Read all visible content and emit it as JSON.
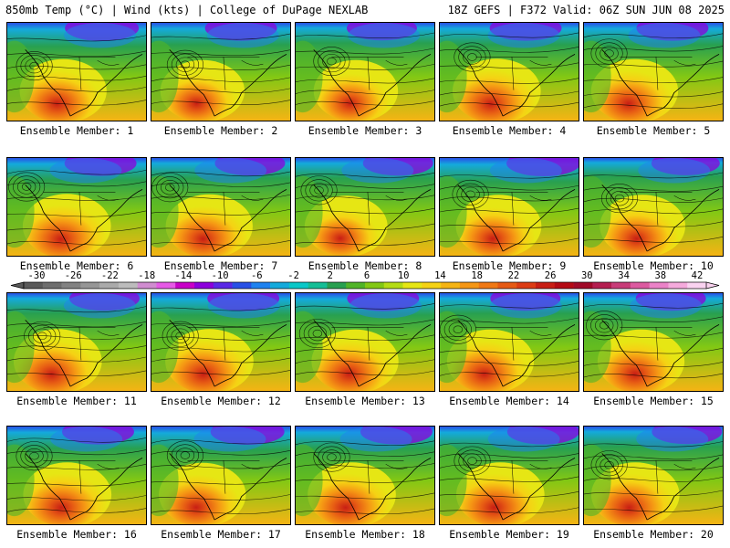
{
  "header": {
    "left": "850mb Temp (°C) | Wind (kts) | College of DuPage NEXLAB",
    "right": "18Z GEFS | F372 Valid: 06Z SUN JUN 08 2025"
  },
  "panels": [
    {
      "label": "Ensemble Member: 1",
      "warmth": 0.55,
      "cold_north": 0.55
    },
    {
      "label": "Ensemble Member: 2",
      "warmth": 0.45,
      "cold_north": 0.5
    },
    {
      "label": "Ensemble Member: 3",
      "warmth": 0.45,
      "cold_north": 0.45
    },
    {
      "label": "Ensemble Member: 4",
      "warmth": 0.6,
      "cold_north": 0.5
    },
    {
      "label": "Ensemble Member: 5",
      "warmth": 0.55,
      "cold_north": 0.5
    },
    {
      "label": "Ensemble Member: 6",
      "warmth": 0.6,
      "cold_north": 0.5
    },
    {
      "label": "Ensemble Member: 7",
      "warmth": 0.55,
      "cold_north": 0.45
    },
    {
      "label": "Ensemble Member: 8",
      "warmth": 0.4,
      "cold_north": 0.45
    },
    {
      "label": "Ensemble Member: 9",
      "warmth": 0.5,
      "cold_north": 0.55
    },
    {
      "label": "Ensemble Member: 10",
      "warmth": 0.5,
      "cold_north": 0.4
    },
    {
      "label": "Ensemble Member: 11",
      "warmth": 0.6,
      "cold_north": 0.45
    },
    {
      "label": "Ensemble Member: 12",
      "warmth": 0.6,
      "cold_north": 0.5
    },
    {
      "label": "Ensemble Member: 13",
      "warmth": 0.55,
      "cold_north": 0.5
    },
    {
      "label": "Ensemble Member: 14",
      "warmth": 0.55,
      "cold_north": 0.45
    },
    {
      "label": "Ensemble Member: 15",
      "warmth": 0.55,
      "cold_north": 0.45
    },
    {
      "label": "Ensemble Member: 16",
      "warmth": 0.6,
      "cold_north": 0.5
    },
    {
      "label": "Ensemble Member: 17",
      "warmth": 0.55,
      "cold_north": 0.55
    },
    {
      "label": "Ensemble Member: 18",
      "warmth": 0.6,
      "cold_north": 0.5
    },
    {
      "label": "Ensemble Member: 19",
      "warmth": 0.6,
      "cold_north": 0.5
    },
    {
      "label": "Ensemble Member: 20",
      "warmth": 0.6,
      "cold_north": 0.45
    }
  ],
  "colorbar": {
    "labels": [
      "-30",
      "-26",
      "-22",
      "-18",
      "-14",
      "-10",
      "-6",
      "-2",
      "2",
      "6",
      "10",
      "14",
      "18",
      "22",
      "26",
      "30",
      "34",
      "38",
      "42"
    ],
    "colors": [
      "#5a5a5a",
      "#6e6e6e",
      "#828282",
      "#969696",
      "#aaaaaa",
      "#bcbcbc",
      "#d08cd0",
      "#e65ae6",
      "#c800c8",
      "#8c00dc",
      "#5a28e6",
      "#2850e6",
      "#1e82f0",
      "#14aadc",
      "#0ac8c8",
      "#14be96",
      "#28a050",
      "#50b428",
      "#82c814",
      "#b4dc14",
      "#e6e614",
      "#f5d214",
      "#f5b414",
      "#f59614",
      "#f07814",
      "#e65a14",
      "#dc3c14",
      "#c81e14",
      "#b40a14",
      "#a00a28",
      "#b41e50",
      "#c83c78",
      "#dc5aa0",
      "#eb82c8",
      "#f5aadc",
      "#fad2f0"
    ]
  }
}
